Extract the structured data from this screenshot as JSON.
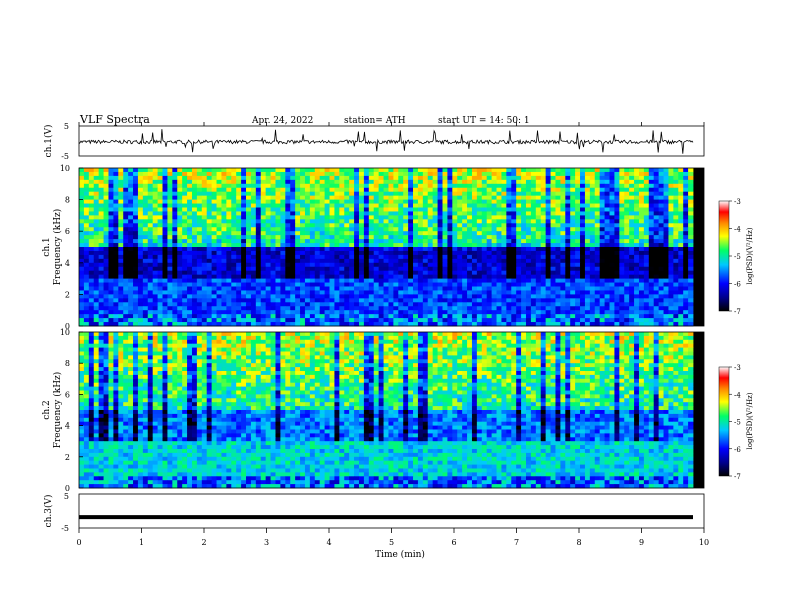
{
  "header": {
    "title": "VLF  Spectra",
    "date": "Apr. 24, 2022",
    "station": "station= ATH",
    "start": "start  UT  =    14: 50: 1"
  },
  "chart_data": [
    {
      "type": "line",
      "name": "ch1-waveform",
      "ylabel": "ch.1(V)",
      "ylim": [
        -5,
        5
      ],
      "yticks": [
        "5",
        "-5"
      ],
      "xlim": [
        0,
        10
      ],
      "baseline": -0.3
    },
    {
      "type": "heatmap",
      "name": "ch1-spectrogram",
      "ylabel_lines": [
        "ch.1",
        "Frequency  (kHz)"
      ],
      "ylim": [
        0,
        10
      ],
      "yticks": [
        "0",
        "2",
        "4",
        "6",
        "8",
        "10"
      ],
      "colorbar": {
        "label": "log(PSD)(V²/Hz)",
        "range": [
          -7,
          -3
        ],
        "ticks": [
          "-3",
          "-4",
          "-5",
          "-6",
          "-7"
        ]
      }
    },
    {
      "type": "heatmap",
      "name": "ch2-spectrogram",
      "ylabel_lines": [
        "ch.2",
        "Frequency  (kHz)"
      ],
      "ylim": [
        0,
        10
      ],
      "yticks": [
        "0",
        "2",
        "4",
        "6",
        "8",
        "10"
      ],
      "colorbar": {
        "label": "log(PSD)(V²/Hz)",
        "range": [
          -7,
          -3
        ],
        "ticks": [
          "-3",
          "-4",
          "-5",
          "-6",
          "-7"
        ]
      }
    },
    {
      "type": "line",
      "name": "ch3-waveform",
      "ylabel": "ch.3(V)",
      "ylim": [
        -5,
        5
      ],
      "yticks": [
        "5",
        "-5"
      ],
      "xlim": [
        0,
        10
      ],
      "value": -1.8
    }
  ],
  "xaxis": {
    "label": "Time  (min)",
    "ticks": [
      "0",
      "1",
      "2",
      "3",
      "4",
      "5",
      "6",
      "7",
      "8",
      "9",
      "10"
    ]
  }
}
